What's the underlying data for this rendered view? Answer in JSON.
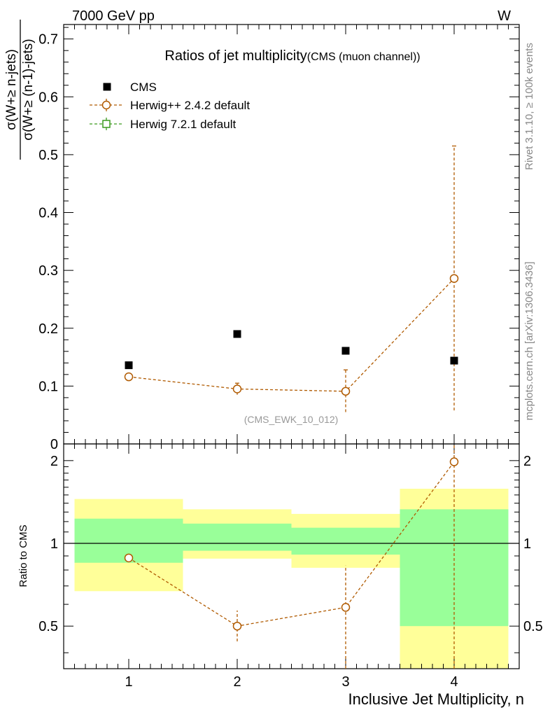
{
  "header": {
    "energy": "7000 GeV pp",
    "process": "W"
  },
  "side_labels": {
    "rivet": "Rivet 3.1.10, ≥ 100k events",
    "mcplots": "mcplots.cern.ch [arXiv:1306.3436]"
  },
  "title": {
    "main": "Ratios of jet multiplicity",
    "sub": "(CMS (muon channel))"
  },
  "analysis_tag": "(CMS_EWK_10_012)",
  "y_axis": {
    "numerator": "σ(W+≥ n-jets)",
    "denominator": "σ(W+≥ (n-1)-jets)"
  },
  "ratio_axis_label": "Ratio to CMS",
  "x_axis_label": "Inclusive Jet Multiplicity, n",
  "legend": {
    "cms": "CMS",
    "herwigpp": "Herwig++ 2.4.2 default",
    "herwig7": "Herwig 7.2.1 default"
  },
  "colors": {
    "data": "#000000",
    "herwigpp": "#b05a00",
    "herwig7": "#3c9a1e",
    "band_inner": "#99ff99",
    "band_outer": "#ffff99",
    "tag": "#999999"
  },
  "chart_data": [
    {
      "type": "scatter",
      "panel": "main",
      "xlim": [
        0.4,
        4.6
      ],
      "ylim": [
        0,
        0.725
      ],
      "yticks": [
        0,
        0.1,
        0.2,
        0.3,
        0.4,
        0.5,
        0.6,
        0.7
      ],
      "ytick_labels": [
        "0",
        "0.1",
        "0.2",
        "0.3",
        "0.4",
        "0.5",
        "0.6",
        "0.7"
      ],
      "series": [
        {
          "name": "CMS",
          "x": [
            1,
            2,
            3,
            4
          ],
          "y": [
            0.136,
            0.19,
            0.161,
            0.144
          ]
        },
        {
          "name": "Herwig++ 2.4.2 default",
          "x": [
            1,
            2,
            3,
            4
          ],
          "y": [
            0.116,
            0.095,
            0.091,
            0.286
          ],
          "yerr_low": [
            0.116,
            0.085,
            0.055,
            0.058
          ],
          "yerr_high": [
            0.116,
            0.105,
            0.128,
            0.515
          ]
        },
        {
          "name": "Herwig 7.2.1 default",
          "x": [],
          "y": []
        }
      ]
    },
    {
      "type": "scatter",
      "panel": "ratio",
      "xlim": [
        0.4,
        4.6
      ],
      "ylim": [
        0.35,
        2.3
      ],
      "yticks": [
        0.5,
        1,
        2
      ],
      "ytick_labels": [
        "0.5",
        "1",
        "2"
      ],
      "xticks": [
        1,
        2,
        3,
        4
      ],
      "xtick_labels": [
        "1",
        "2",
        "3",
        "4"
      ],
      "bands": [
        {
          "x_from": 0.5,
          "x_to": 1.5,
          "inner": [
            0.85,
            1.23
          ],
          "outer": [
            0.67,
            1.45
          ]
        },
        {
          "x_from": 1.5,
          "x_to": 2.5,
          "inner": [
            0.94,
            1.18
          ],
          "outer": [
            0.88,
            1.33
          ]
        },
        {
          "x_from": 2.5,
          "x_to": 3.5,
          "inner": [
            0.91,
            1.14
          ],
          "outer": [
            0.815,
            1.28
          ]
        },
        {
          "x_from": 3.5,
          "x_to": 4.5,
          "inner": [
            0.5,
            1.33
          ],
          "outer": [
            0.35,
            1.58
          ]
        }
      ],
      "series": [
        {
          "name": "Herwig++ 2.4.2 default",
          "x": [
            1,
            2,
            3,
            4
          ],
          "y": [
            0.885,
            0.5,
            0.585,
            1.98
          ],
          "yerr_low": [
            0.885,
            0.44,
            0.35,
            0.35
          ],
          "yerr_high": [
            0.885,
            0.57,
            0.83,
            2.3
          ]
        }
      ]
    }
  ]
}
